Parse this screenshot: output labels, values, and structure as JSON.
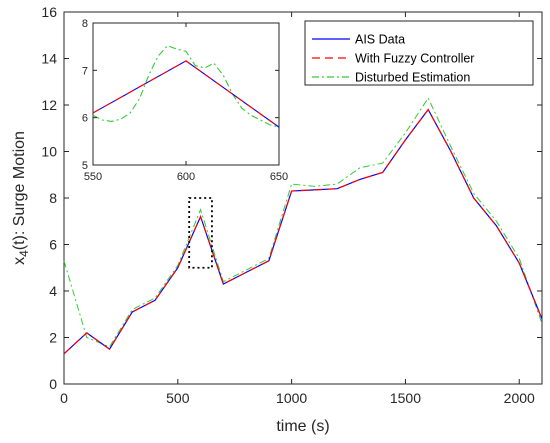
{
  "chart_data": {
    "type": "line",
    "title": "",
    "xlabel": "time (s)",
    "ylabel_main": "x",
    "ylabel_sub": "4",
    "ylabel_rest": "(t): Surge Motion",
    "xlim": [
      0,
      2100
    ],
    "ylim": [
      0,
      16
    ],
    "xticks": [
      0,
      500,
      1000,
      1500,
      2000
    ],
    "yticks": [
      0,
      2,
      4,
      6,
      8,
      10,
      12,
      14,
      16
    ],
    "grid": false,
    "legend_position": "top-right",
    "series": [
      {
        "name": "AIS Data",
        "color": "#0000ff",
        "style": "solid",
        "x": [
          0,
          100,
          200,
          300,
          400,
          500,
          600,
          700,
          800,
          900,
          1000,
          1100,
          1200,
          1300,
          1400,
          1500,
          1600,
          1700,
          1800,
          1900,
          2000,
          2100
        ],
        "y": [
          1.3,
          2.2,
          1.5,
          3.1,
          3.6,
          5.0,
          7.2,
          4.3,
          4.8,
          5.3,
          8.3,
          8.35,
          8.4,
          8.8,
          9.1,
          10.5,
          11.8,
          10.0,
          8.0,
          6.8,
          5.2,
          2.8
        ]
      },
      {
        "name": "With Fuzzy Controller",
        "color": "#ff0000",
        "style": "dashed",
        "x": [
          0,
          100,
          200,
          300,
          400,
          500,
          600,
          700,
          800,
          900,
          1000,
          1100,
          1200,
          1300,
          1400,
          1500,
          1600,
          1700,
          1800,
          1900,
          2000,
          2100
        ],
        "y": [
          1.3,
          2.2,
          1.5,
          3.1,
          3.6,
          5.0,
          7.2,
          4.3,
          4.8,
          5.3,
          8.3,
          8.35,
          8.4,
          8.8,
          9.1,
          10.5,
          11.8,
          10.0,
          8.0,
          6.8,
          5.2,
          2.8
        ]
      },
      {
        "name": "Disturbed Estimation",
        "color": "#33cc33",
        "style": "dashdot",
        "x": [
          0,
          100,
          200,
          300,
          400,
          500,
          600,
          700,
          800,
          900,
          1000,
          1100,
          1200,
          1300,
          1400,
          1500,
          1600,
          1700,
          1800,
          1900,
          2000,
          2100
        ],
        "y": [
          5.3,
          2.0,
          1.6,
          3.2,
          3.7,
          5.1,
          7.5,
          4.4,
          4.9,
          5.4,
          8.6,
          8.5,
          8.6,
          9.3,
          9.5,
          10.8,
          12.3,
          10.2,
          8.2,
          7.0,
          5.4,
          2.6
        ]
      }
    ],
    "zoom_box": {
      "xlim": [
        550,
        650
      ],
      "ylim": [
        5,
        8
      ]
    },
    "inset": {
      "xlim": [
        550,
        650
      ],
      "ylim": [
        5,
        8
      ],
      "xticks": [
        550,
        600,
        650
      ],
      "yticks": [
        5,
        6,
        7,
        8
      ],
      "series": [
        {
          "name": "AIS Data",
          "x": [
            550,
            600,
            650
          ],
          "y": [
            6.1,
            7.2,
            5.8
          ]
        },
        {
          "name": "Disturbed Estimation",
          "x": [
            550,
            555,
            560,
            565,
            570,
            575,
            580,
            585,
            590,
            595,
            600,
            605,
            610,
            615,
            620,
            625,
            630,
            635,
            640,
            645,
            650
          ],
          "y": [
            6.05,
            5.95,
            5.92,
            5.97,
            6.1,
            6.4,
            6.9,
            7.3,
            7.52,
            7.45,
            7.4,
            7.1,
            7.05,
            7.15,
            6.9,
            6.5,
            6.2,
            6.05,
            5.95,
            5.85,
            5.8
          ]
        }
      ]
    }
  }
}
